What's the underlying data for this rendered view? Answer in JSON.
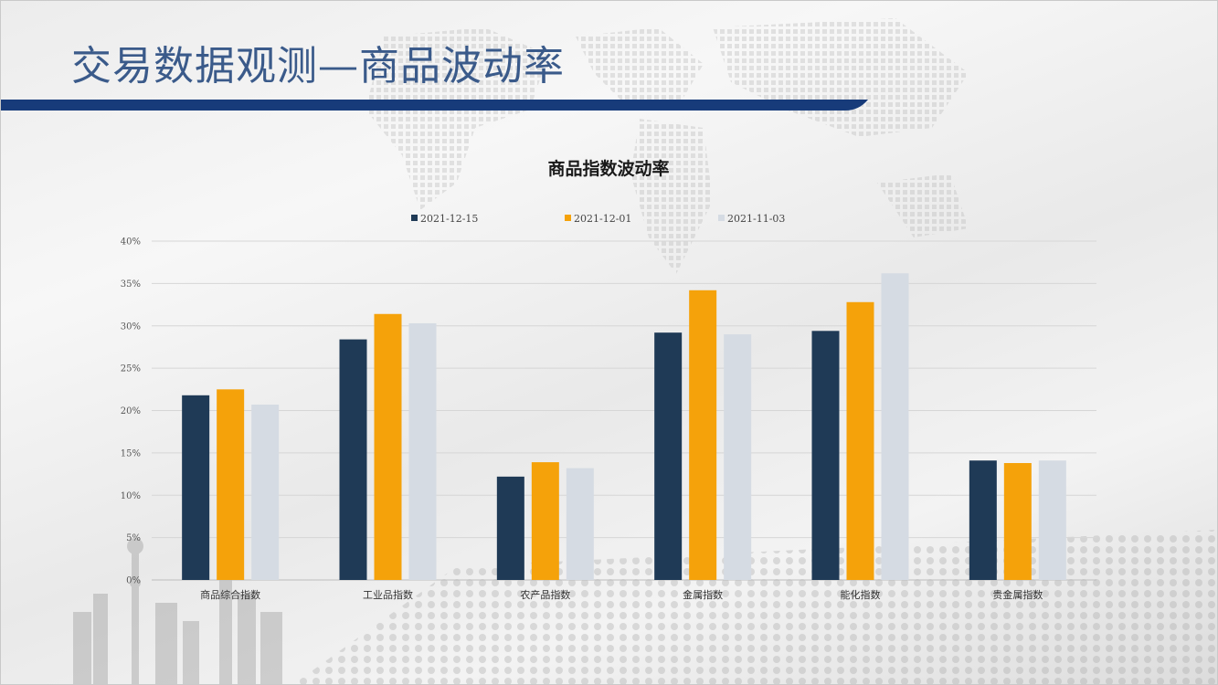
{
  "header": {
    "title": "交易数据观测—商品波动率"
  },
  "colors": {
    "title": "#3a5a8a",
    "bar": "#173b7a",
    "series": [
      "#1f3a56",
      "#f5a20a",
      "#d5dbe3"
    ]
  },
  "chart_data": {
    "type": "bar",
    "title": "商品指数波动率",
    "xlabel": "",
    "ylabel": "",
    "ylim": [
      0,
      0.4
    ],
    "yticks": [
      "0%",
      "5%",
      "10%",
      "15%",
      "20%",
      "25%",
      "30%",
      "35%",
      "40%"
    ],
    "grid": true,
    "legend_position": "top",
    "categories": [
      "商品综合指数",
      "工业品指数",
      "农产品指数",
      "金属指数",
      "能化指数",
      "贵金属指数"
    ],
    "series": [
      {
        "name": "2021-12-15",
        "values": [
          0.218,
          0.284,
          0.122,
          0.292,
          0.294,
          0.141
        ]
      },
      {
        "name": "2021-12-01",
        "values": [
          0.225,
          0.314,
          0.139,
          0.342,
          0.328,
          0.138
        ]
      },
      {
        "name": "2021-11-03",
        "values": [
          0.207,
          0.303,
          0.132,
          0.29,
          0.362,
          0.141
        ]
      }
    ]
  }
}
